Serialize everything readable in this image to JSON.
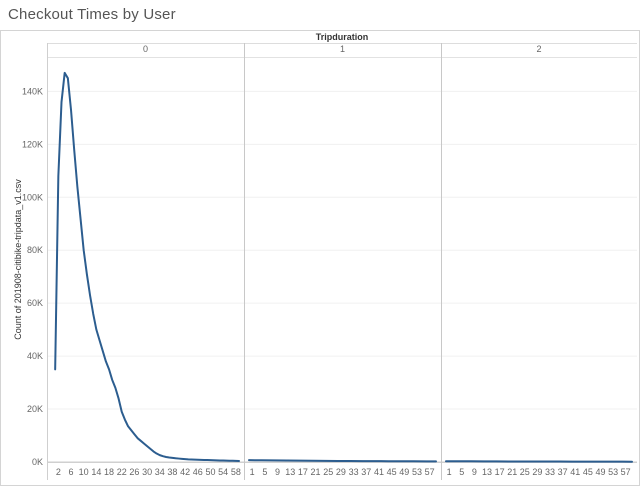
{
  "title": "Checkout Times by User",
  "chart_data": {
    "type": "line",
    "title": "Checkout Times by User",
    "column_header": "Tripduration",
    "ylabel": "Count of 201908-citibike-tripdata_v1.csv",
    "xlabel": "",
    "ylim": [
      0,
      153000
    ],
    "y_ticks": [
      {
        "value": 0,
        "label": "0K"
      },
      {
        "value": 20000,
        "label": "20K"
      },
      {
        "value": 40000,
        "label": "40K"
      },
      {
        "value": 60000,
        "label": "60K"
      },
      {
        "value": 80000,
        "label": "80K"
      },
      {
        "value": 100000,
        "label": "100K"
      },
      {
        "value": 120000,
        "label": "120K"
      },
      {
        "value": 140000,
        "label": "140K"
      }
    ],
    "grid": true,
    "line_color": "#2c5d8f",
    "panels": [
      {
        "name": "0",
        "x_ticks": [
          "2",
          "6",
          "10",
          "14",
          "18",
          "22",
          "26",
          "30",
          "34",
          "38",
          "42",
          "46",
          "50",
          "54",
          "58"
        ],
        "x": [
          1,
          2,
          3,
          4,
          5,
          6,
          7,
          8,
          9,
          10,
          11,
          12,
          13,
          14,
          15,
          16,
          17,
          18,
          19,
          20,
          21,
          22,
          23,
          24,
          25,
          26,
          27,
          28,
          29,
          30,
          31,
          32,
          33,
          34,
          35,
          36,
          37,
          38,
          39,
          40,
          41,
          42,
          43,
          44,
          45,
          46,
          47,
          48,
          49,
          50,
          51,
          52,
          53,
          54,
          55,
          56,
          57,
          58,
          59
        ],
        "values": [
          35000,
          108000,
          136000,
          147000,
          145000,
          133000,
          118000,
          104000,
          92000,
          80000,
          71000,
          63000,
          56000,
          50000,
          46000,
          42000,
          38000,
          35000,
          31000,
          28000,
          24000,
          19000,
          16000,
          13500,
          12000,
          10500,
          9000,
          8000,
          7000,
          6000,
          5000,
          4000,
          3200,
          2600,
          2200,
          1900,
          1700,
          1550,
          1400,
          1300,
          1200,
          1100,
          1000,
          950,
          900,
          860,
          820,
          780,
          740,
          700,
          660,
          620,
          580,
          550,
          520,
          490,
          460,
          430,
          400
        ]
      },
      {
        "name": "1",
        "x_ticks": [
          "1",
          "5",
          "9",
          "13",
          "17",
          "21",
          "25",
          "29",
          "33",
          "37",
          "41",
          "45",
          "49",
          "53",
          "57"
        ],
        "x": [
          0,
          4,
          8,
          12,
          16,
          20,
          24,
          28,
          32,
          36,
          40,
          44,
          48,
          52,
          56,
          59
        ],
        "values": [
          700,
          650,
          600,
          560,
          520,
          480,
          440,
          400,
          370,
          340,
          320,
          300,
          280,
          260,
          240,
          230
        ]
      },
      {
        "name": "2",
        "x_ticks": [
          "1",
          "5",
          "9",
          "13",
          "17",
          "21",
          "25",
          "29",
          "33",
          "37",
          "41",
          "45",
          "49",
          "53",
          "57"
        ],
        "x": [
          0,
          4,
          8,
          12,
          16,
          20,
          24,
          28,
          32,
          36,
          40,
          44,
          48,
          52,
          56,
          59
        ],
        "values": [
          300,
          280,
          260,
          240,
          220,
          210,
          200,
          190,
          180,
          170,
          160,
          150,
          140,
          130,
          120,
          110
        ]
      }
    ]
  }
}
